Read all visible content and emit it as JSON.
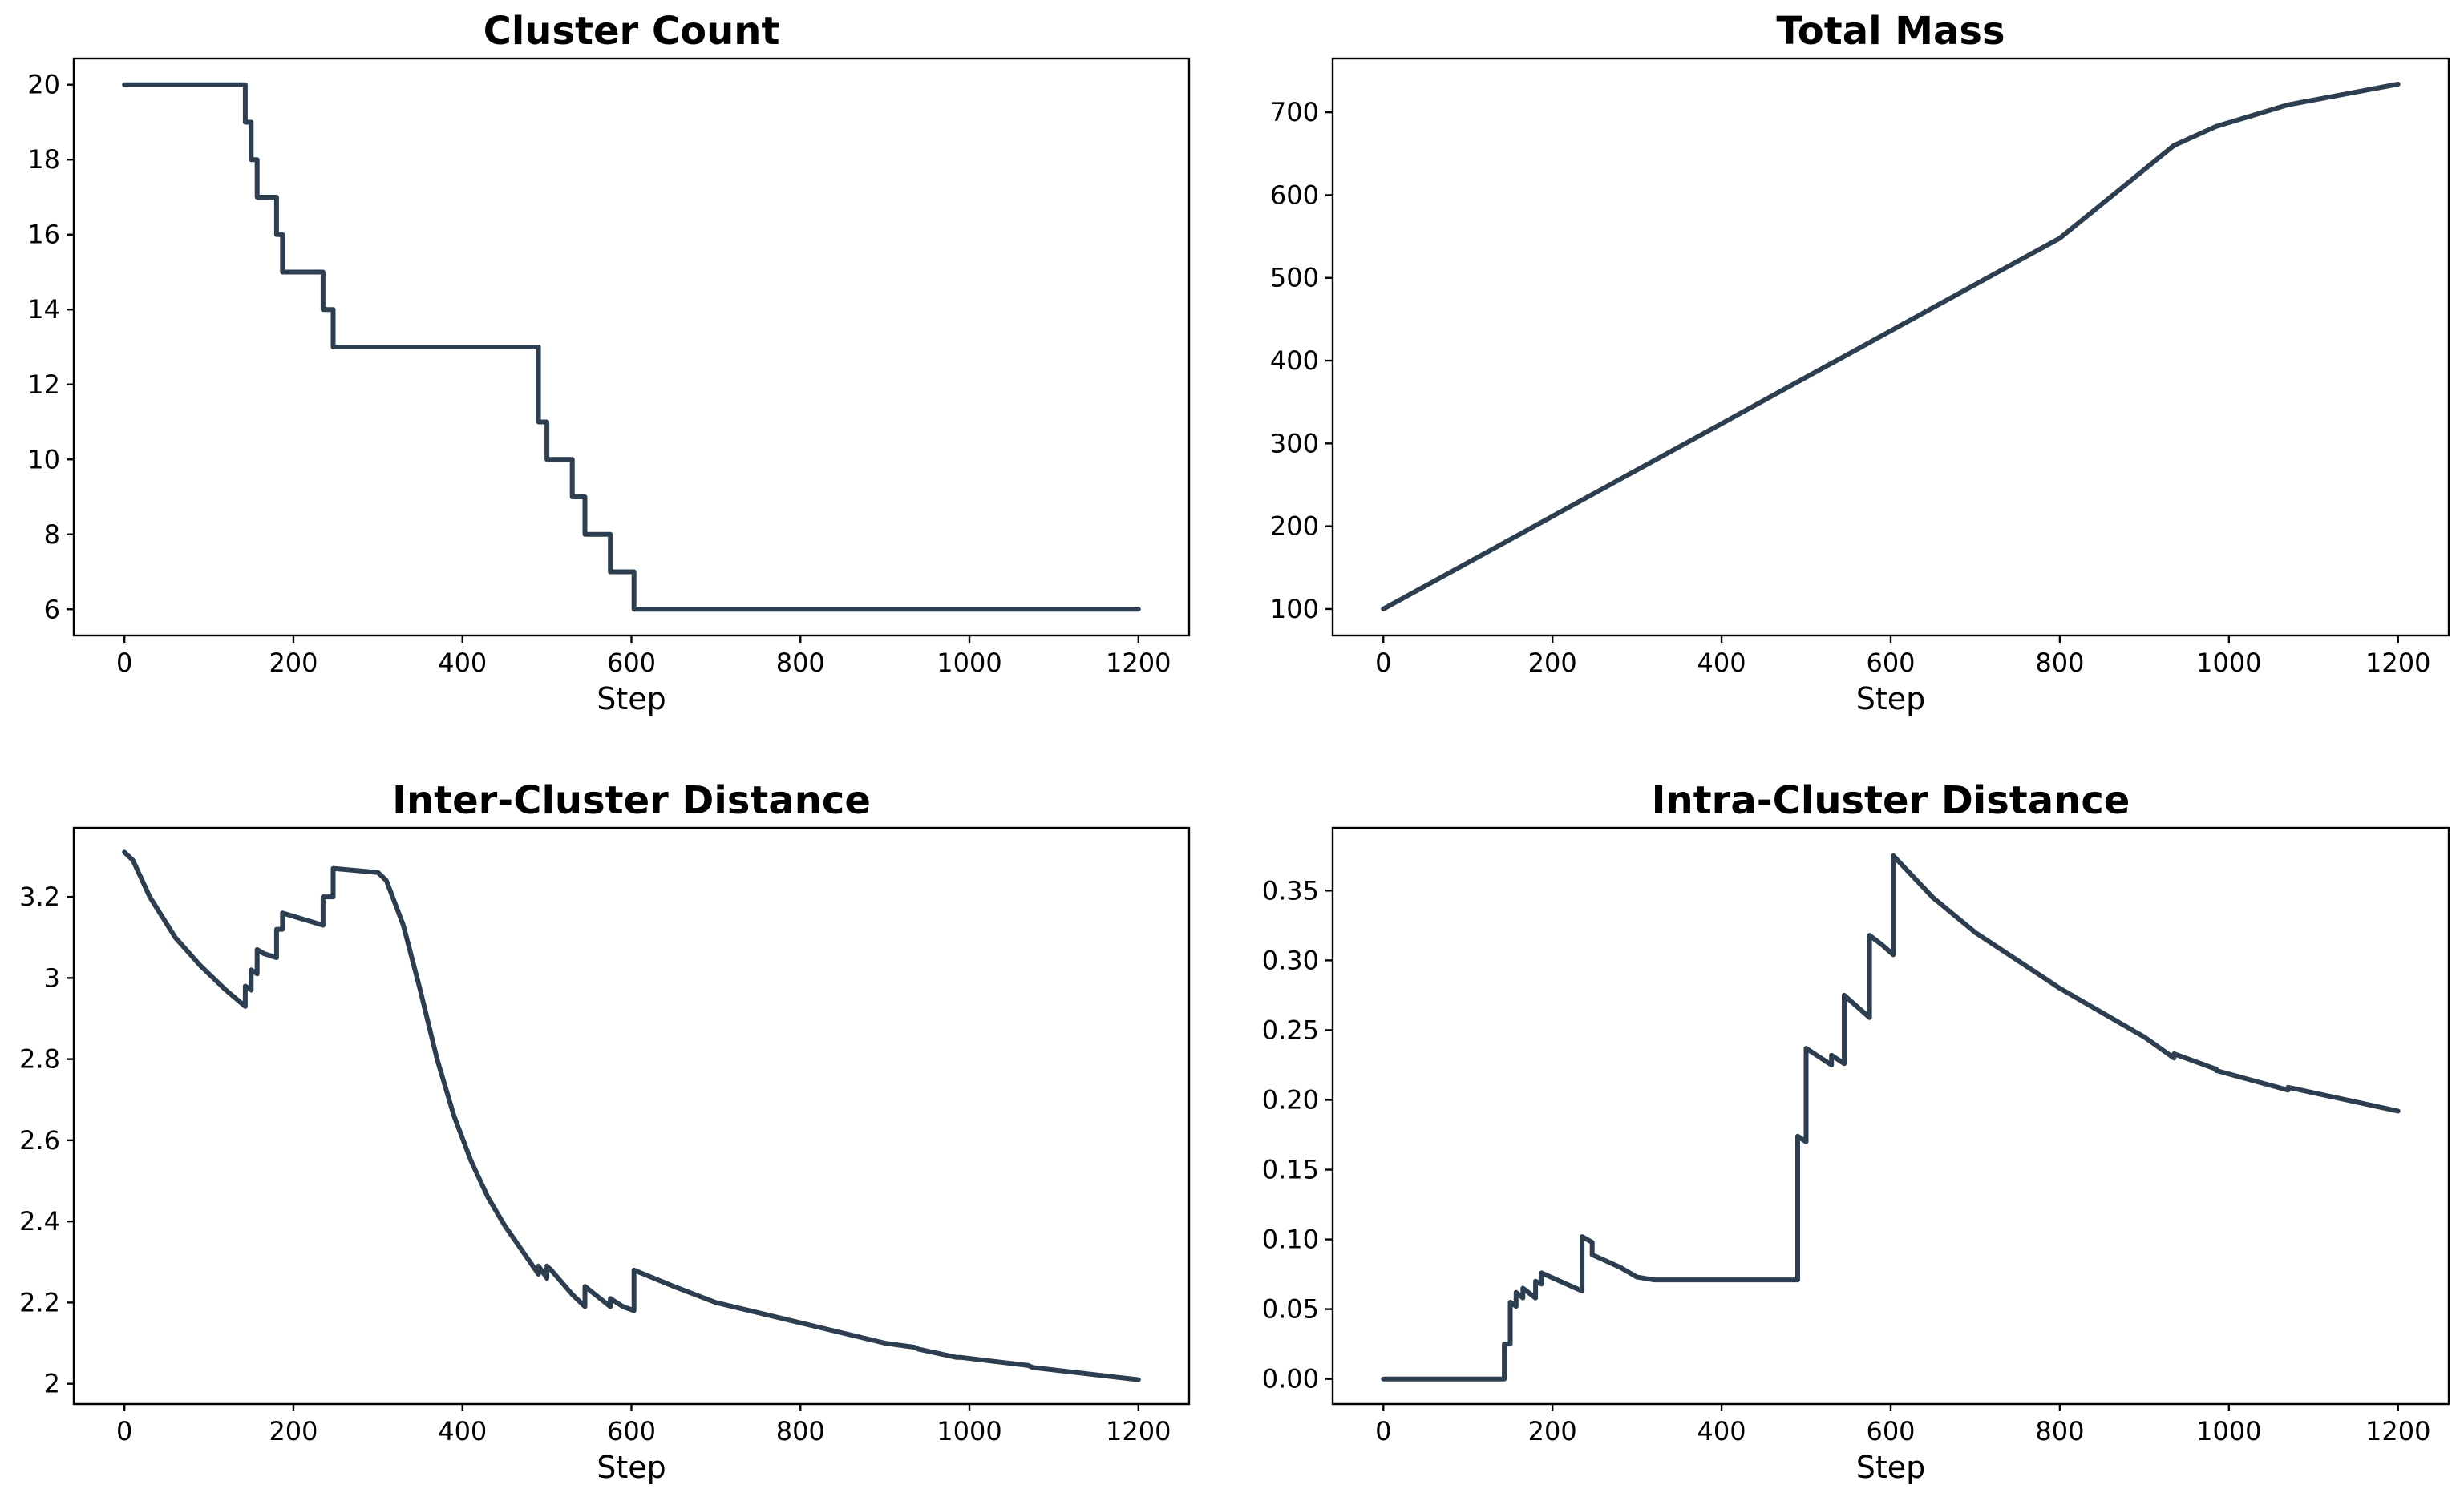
{
  "style": {
    "line_color": "#2c3e50",
    "background": "#ffffff"
  },
  "chart_data": [
    {
      "id": "cluster-count",
      "type": "line",
      "title": "Cluster Count",
      "xlabel": "Step",
      "ylabel": "",
      "xlim": [
        -60,
        1260
      ],
      "ylim": [
        5.3,
        20.7
      ],
      "xticks": [
        0,
        200,
        400,
        600,
        800,
        1000,
        1200
      ],
      "yticks": [
        6,
        8,
        10,
        12,
        14,
        16,
        18,
        20
      ],
      "x": [
        0,
        143,
        143,
        150,
        150,
        157,
        157,
        180,
        180,
        187,
        187,
        235,
        235,
        247,
        247,
        490,
        490,
        500,
        500,
        530,
        530,
        545,
        545,
        575,
        575,
        603,
        603,
        1200
      ],
      "y": [
        20,
        20,
        19,
        19,
        18,
        18,
        17,
        17,
        16,
        16,
        15,
        15,
        14,
        14,
        13,
        13,
        11,
        11,
        10,
        10,
        9,
        9,
        8,
        8,
        7,
        7,
        6,
        6
      ]
    },
    {
      "id": "total-mass",
      "type": "line",
      "title": "Total Mass",
      "xlabel": "Step",
      "ylabel": "",
      "xlim": [
        -60,
        1260
      ],
      "ylim": [
        68,
        765
      ],
      "xticks": [
        0,
        200,
        400,
        600,
        800,
        1000,
        1200
      ],
      "yticks": [
        100,
        200,
        300,
        400,
        500,
        600,
        700
      ],
      "x": [
        0,
        200,
        400,
        600,
        800,
        935,
        985,
        1070,
        1200
      ],
      "y": [
        100,
        212,
        324,
        436,
        548,
        660,
        683,
        709,
        734
      ]
    },
    {
      "id": "inter-cluster-distance",
      "type": "line",
      "title": "Inter-Cluster Distance",
      "xlabel": "Step",
      "ylabel": "",
      "xlim": [
        -60,
        1260
      ],
      "ylim": [
        1.95,
        3.37
      ],
      "xticks": [
        0,
        200,
        400,
        600,
        800,
        1000,
        1200
      ],
      "yticks": [
        2.0,
        2.2,
        2.4,
        2.6,
        2.8,
        3.0,
        3.2
      ],
      "x": [
        0,
        10,
        30,
        60,
        90,
        120,
        143,
        143,
        150,
        150,
        157,
        157,
        165,
        165,
        180,
        180,
        187,
        187,
        235,
        235,
        247,
        247,
        300,
        310,
        330,
        350,
        370,
        390,
        410,
        430,
        450,
        470,
        490,
        490,
        500,
        500,
        505,
        530,
        545,
        545,
        575,
        575,
        590,
        603,
        603,
        650,
        700,
        800,
        900,
        935,
        940,
        985,
        990,
        1070,
        1075,
        1200
      ],
      "y": [
        3.31,
        3.29,
        3.2,
        3.1,
        3.03,
        2.97,
        2.93,
        2.98,
        2.97,
        3.02,
        3.01,
        3.07,
        3.06,
        3.06,
        3.05,
        3.12,
        3.12,
        3.16,
        3.13,
        3.2,
        3.2,
        3.27,
        3.26,
        3.24,
        3.13,
        2.97,
        2.8,
        2.66,
        2.55,
        2.46,
        2.39,
        2.33,
        2.27,
        2.29,
        2.26,
        2.29,
        2.28,
        2.22,
        2.19,
        2.24,
        2.19,
        2.21,
        2.19,
        2.18,
        2.28,
        2.24,
        2.2,
        2.15,
        2.1,
        2.09,
        2.085,
        2.065,
        2.065,
        2.045,
        2.04,
        2.01
      ]
    },
    {
      "id": "intra-cluster-distance",
      "type": "line",
      "title": "Intra-Cluster Distance",
      "xlabel": "Step",
      "ylabel": "",
      "xlim": [
        -60,
        1260
      ],
      "ylim": [
        -0.018,
        0.395
      ],
      "xticks": [
        0,
        200,
        400,
        600,
        800,
        1000,
        1200
      ],
      "yticks": [
        0.0,
        0.05,
        0.1,
        0.15,
        0.2,
        0.25,
        0.3,
        0.35
      ],
      "ytick_labels": [
        "0.00",
        "0.05",
        "0.10",
        "0.15",
        "0.20",
        "0.25",
        "0.30",
        "0.35"
      ],
      "x": [
        0,
        143,
        143,
        150,
        150,
        157,
        157,
        165,
        165,
        180,
        180,
        187,
        187,
        235,
        235,
        247,
        247,
        280,
        300,
        320,
        490,
        490,
        500,
        500,
        530,
        530,
        540,
        545,
        545,
        575,
        575,
        590,
        603,
        603,
        650,
        700,
        800,
        900,
        935,
        935,
        985,
        985,
        1070,
        1070,
        1200
      ],
      "y": [
        0,
        0,
        0.025,
        0.025,
        0.055,
        0.052,
        0.062,
        0.058,
        0.065,
        0.058,
        0.07,
        0.068,
        0.076,
        0.063,
        0.102,
        0.098,
        0.089,
        0.08,
        0.073,
        0.071,
        0.071,
        0.174,
        0.17,
        0.237,
        0.225,
        0.232,
        0.228,
        0.226,
        0.275,
        0.259,
        0.318,
        0.311,
        0.304,
        0.375,
        0.345,
        0.32,
        0.28,
        0.245,
        0.23,
        0.233,
        0.222,
        0.221,
        0.207,
        0.209,
        0.192
      ]
    }
  ]
}
